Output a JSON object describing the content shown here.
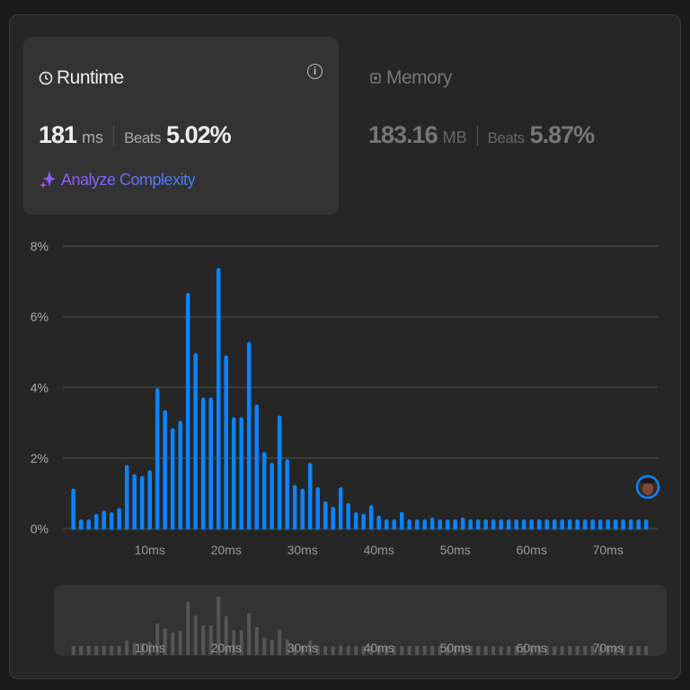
{
  "runtime": {
    "title": "Runtime",
    "value": "181",
    "unit": "ms",
    "beats_label": "Beats",
    "beats_value": "5.02%",
    "analyze_label": "Analyze Complexity",
    "icons": {
      "title": "clock-icon",
      "info": "info-icon",
      "analyze": "sparkle-icon"
    }
  },
  "memory": {
    "title": "Memory",
    "value": "183.16",
    "unit": "MB",
    "beats_label": "Beats",
    "beats_value": "5.87%",
    "icons": {
      "title": "chip-icon"
    }
  },
  "chart_data": {
    "type": "bar",
    "x": [
      0,
      1,
      2,
      3,
      4,
      5,
      6,
      7,
      8,
      9,
      10,
      11,
      12,
      13,
      14,
      15,
      16,
      17,
      18,
      19,
      20,
      21,
      22,
      23,
      24,
      25,
      26,
      27,
      28,
      29,
      30,
      31,
      32,
      33,
      34,
      35,
      36,
      37,
      38,
      39,
      40,
      41,
      42,
      43,
      44,
      45,
      46,
      47,
      48,
      49,
      50,
      51,
      52,
      53,
      54,
      55,
      56,
      57,
      58,
      59,
      60,
      61,
      62,
      63,
      64,
      65,
      66,
      67,
      68,
      69,
      70,
      71,
      72,
      73,
      74,
      75
    ],
    "values": [
      1.13,
      0.26,
      0.26,
      0.41,
      0.51,
      0.46,
      0.58,
      1.8,
      1.54,
      1.49,
      1.65,
      3.97,
      3.35,
      2.84,
      3.05,
      6.67,
      4.96,
      3.71,
      3.71,
      7.38,
      4.9,
      3.15,
      3.15,
      5.28,
      3.51,
      2.17,
      1.86,
      3.2,
      1.96,
      1.23,
      1.13,
      1.86,
      1.17,
      0.77,
      0.62,
      1.17,
      0.72,
      0.46,
      0.42,
      0.66,
      0.37,
      0.26,
      0.26,
      0.47,
      0.26,
      0.26,
      0.26,
      0.31,
      0.26,
      0.26,
      0.26,
      0.31,
      0.26,
      0.26,
      0.26,
      0.26,
      0.26,
      0.26,
      0.26,
      0.26,
      0.26,
      0.26,
      0.26,
      0.26,
      0.26,
      0.26,
      0.26,
      0.26,
      0.26,
      0.26,
      0.26,
      0.26,
      0.26,
      0.26,
      0.26,
      0.26
    ],
    "ylim": [
      0,
      8
    ],
    "y_ticks": [
      "0%",
      "2%",
      "4%",
      "6%",
      "8%"
    ],
    "x_ticks": [
      "10ms",
      "20ms",
      "30ms",
      "40ms",
      "50ms",
      "60ms",
      "70ms"
    ],
    "x_tick_values": [
      10,
      20,
      30,
      40,
      50,
      60,
      70
    ],
    "grid": true,
    "bar_color": "#0a84ff",
    "mini_bar_color": "#555555",
    "marker": "avatar"
  }
}
